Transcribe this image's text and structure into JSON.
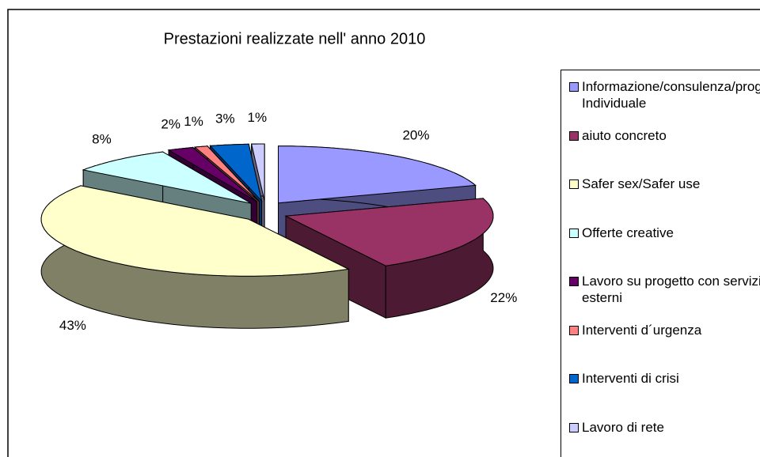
{
  "chart_data": {
    "type": "pie3d",
    "title": "Prestazioni realizzate nell' anno 2010",
    "categories": [
      "Informazione/consulenza/prog. Individuale",
      "aiuto concreto",
      "Safer sex/Safer use",
      "Offerte creative",
      "Lavoro su progetto con servizi esterni",
      "Interventi d´urgenza",
      "Interventi di crisi",
      "Lavoro di rete"
    ],
    "values": [
      20,
      22,
      43,
      8,
      2,
      1,
      3,
      1
    ],
    "value_labels": [
      "20%",
      "22%",
      "43%",
      "8%",
      "2%",
      "1%",
      "3%",
      "1%"
    ],
    "colors": [
      "#9999ff",
      "#993366",
      "#ffffcc",
      "#ccffff",
      "#660066",
      "#ff8080",
      "#0066cc",
      "#ccccff"
    ],
    "legend": "right"
  }
}
